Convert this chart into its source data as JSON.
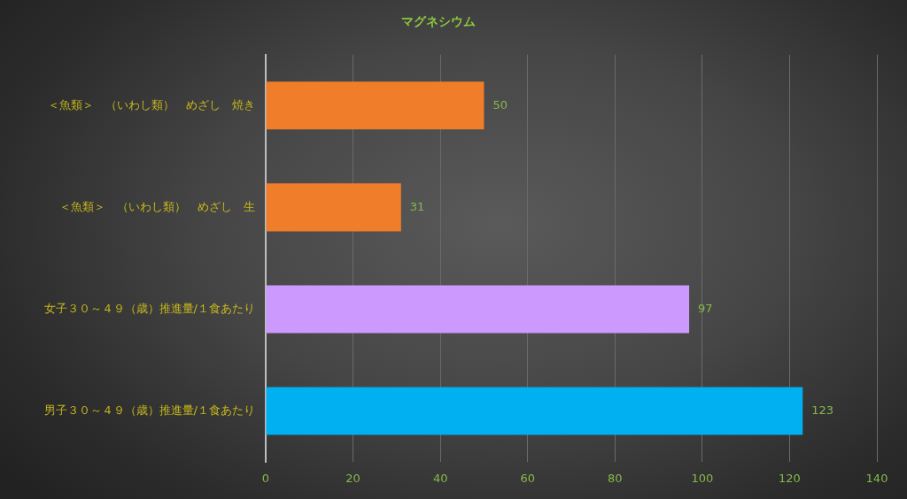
{
  "chart_data": {
    "type": "bar",
    "orientation": "horizontal",
    "title": "マグネシウム",
    "categories": [
      "＜魚類＞　（いわし類）　めざし　焼き",
      "＜魚類＞　（いわし類）　めざし　生",
      "女子３０～４９（歳）推進量/１食あたり",
      "男子３０～４９（歳）推進量/１食あたり"
    ],
    "values": [
      50,
      31,
      97,
      123
    ],
    "colors": [
      "#f07d2a",
      "#f07d2a",
      "#cc99ff",
      "#00b0f0"
    ],
    "xlim": [
      0,
      140
    ],
    "xticks": [
      0,
      20,
      40,
      60,
      80,
      100,
      120,
      140
    ],
    "grid": "x",
    "data_labels": true
  }
}
